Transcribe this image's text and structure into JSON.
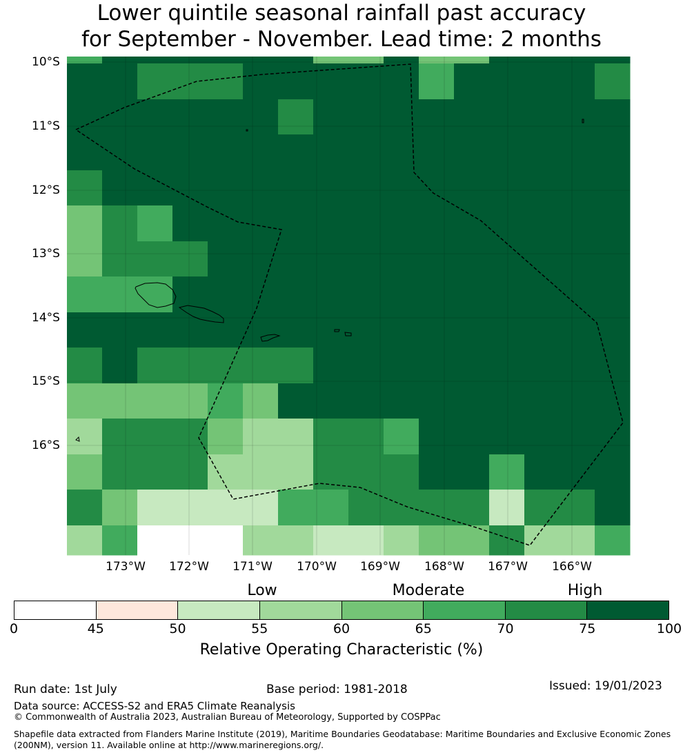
{
  "title_line1": "Lower quintile seasonal rainfall past accuracy",
  "title_line2": "for September - November. Lead time: 2 months",
  "map": {
    "lat_labels": [
      "10°S",
      "11°S",
      "12°S",
      "13°S",
      "14°S",
      "15°S",
      "16°S"
    ],
    "lon_labels": [
      "173°W",
      "172°W",
      "171°W",
      "170°W",
      "169°W",
      "168°W",
      "167°W",
      "166°W"
    ],
    "grid_colors": [
      "#ffffff",
      "#fee8dc",
      "#c7e9c0",
      "#a1d99b",
      "#74c476",
      "#41ab5d",
      "#238b45",
      "#005a32"
    ],
    "grid_levels": [
      [
        5,
        7,
        7,
        7,
        7,
        7,
        7,
        4,
        4,
        7,
        4,
        4,
        7,
        7,
        7,
        7
      ],
      [
        7,
        7,
        6,
        6,
        6,
        7,
        7,
        7,
        7,
        7,
        5,
        7,
        7,
        7,
        7,
        6
      ],
      [
        7,
        7,
        7,
        7,
        7,
        7,
        6,
        7,
        7,
        7,
        7,
        7,
        7,
        7,
        7,
        7
      ],
      [
        7,
        7,
        7,
        7,
        7,
        7,
        7,
        7,
        7,
        7,
        7,
        7,
        7,
        7,
        7,
        7
      ],
      [
        6,
        7,
        7,
        7,
        7,
        7,
        7,
        7,
        7,
        7,
        7,
        7,
        7,
        7,
        7,
        7
      ],
      [
        4,
        6,
        5,
        7,
        7,
        7,
        7,
        7,
        7,
        7,
        7,
        7,
        7,
        7,
        7,
        7
      ],
      [
        4,
        6,
        6,
        6,
        7,
        7,
        7,
        7,
        7,
        7,
        7,
        7,
        7,
        7,
        7,
        7
      ],
      [
        5,
        5,
        5,
        7,
        7,
        7,
        7,
        7,
        7,
        7,
        7,
        7,
        7,
        7,
        7,
        7
      ],
      [
        7,
        7,
        7,
        7,
        7,
        7,
        7,
        7,
        7,
        7,
        7,
        7,
        7,
        7,
        7,
        7
      ],
      [
        6,
        7,
        6,
        6,
        6,
        6,
        6,
        7,
        7,
        7,
        7,
        7,
        7,
        7,
        7,
        7
      ],
      [
        4,
        4,
        4,
        4,
        5,
        4,
        7,
        7,
        7,
        7,
        7,
        7,
        7,
        7,
        7,
        7
      ],
      [
        3,
        6,
        6,
        6,
        4,
        3,
        3,
        6,
        6,
        5,
        7,
        7,
        7,
        7,
        7,
        7
      ],
      [
        4,
        6,
        6,
        6,
        3,
        3,
        3,
        6,
        6,
        6,
        7,
        7,
        5,
        7,
        7,
        7
      ],
      [
        6,
        4,
        2,
        2,
        2,
        2,
        5,
        5,
        6,
        6,
        6,
        6,
        2,
        6,
        6,
        7
      ],
      [
        3,
        5,
        0,
        0,
        0,
        3,
        3,
        2,
        2,
        3,
        4,
        4,
        6,
        3,
        3,
        5
      ]
    ]
  },
  "categories": [
    "Low",
    "Moderate",
    "High"
  ],
  "colorbar": {
    "ticks": [
      "0",
      "45",
      "50",
      "55",
      "60",
      "65",
      "70",
      "75",
      "100"
    ],
    "colors": [
      "#ffffff",
      "#fee8dc",
      "#c7e9c0",
      "#a1d99b",
      "#74c476",
      "#41ab5d",
      "#238b45",
      "#005a32"
    ],
    "label": "Relative Operating Characteristic (%)"
  },
  "footer": {
    "run_date": "Run date: 1st July",
    "base_period": "Base period: 1981-2018",
    "issued": "Issued: 19/01/2023",
    "data_source": "Data source: ACCESS-S2 and ERA5 Climate Reanalysis",
    "copyright": "© Commonwealth of Australia 2023, Australian Bureau of Meteorology, Supported by COSPPac",
    "shapefile_line1": "Shapefile data extracted from Flanders Marine Institute (2019), Maritime Boundaries Geodatabase: Maritime Boundaries and Exclusive Economic Zones",
    "shapefile_line2": "(200NM), version 11. Available online at http://www.marineregions.org/."
  }
}
